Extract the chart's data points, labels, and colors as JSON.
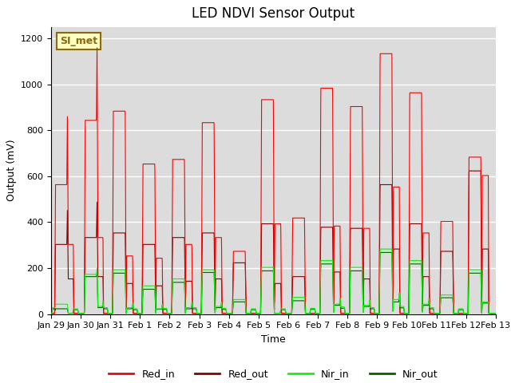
{
  "title": "LED NDVI Sensor Output",
  "xlabel": "Time",
  "ylabel": "Output (mV)",
  "xlim": [
    0,
    15
  ],
  "ylim": [
    0,
    1250
  ],
  "yticks": [
    0,
    200,
    400,
    600,
    800,
    1000,
    1200
  ],
  "xtick_labels": [
    "Jan 29",
    "Jan 30",
    "Jan 31",
    "Feb 1",
    "Feb 2",
    "Feb 3",
    "Feb 4",
    "Feb 5",
    "Feb 6",
    "Feb 7",
    "Feb 8",
    "Feb 9",
    "Feb 10",
    "Feb 11",
    "Feb 12",
    "Feb 13"
  ],
  "xtick_positions": [
    0,
    1,
    2,
    3,
    4,
    5,
    6,
    7,
    8,
    9,
    10,
    11,
    12,
    13,
    14,
    15
  ],
  "colors": {
    "Red_in": "#ff0000",
    "Red_out": "#8b0000",
    "Nir_in": "#00ff00",
    "Nir_out": "#006400"
  },
  "background_color": "#dcdcdc",
  "annotation_text": "SI_met",
  "annotation_color": "#8b6914",
  "annotation_bg": "#ffffc0",
  "title_fontsize": 12,
  "axis_fontsize": 9,
  "tick_fontsize": 8,
  "legend_fontsize": 9,
  "pulse_groups": [
    {
      "t_start": 0.15,
      "t_end": 0.55,
      "ri": 560,
      "ro": 300,
      "ni": 40,
      "no": 20
    },
    {
      "t_start": 1.15,
      "t_end": 1.55,
      "ri": 840,
      "ro": 330,
      "ni": 170,
      "no": 160
    },
    {
      "t_start": 2.1,
      "t_end": 2.5,
      "ri": 880,
      "ro": 350,
      "ni": 190,
      "no": 175
    },
    {
      "t_start": 3.1,
      "t_end": 3.5,
      "ri": 650,
      "ro": 300,
      "ni": 120,
      "no": 105
    },
    {
      "t_start": 4.1,
      "t_end": 4.5,
      "ri": 670,
      "ro": 330,
      "ni": 150,
      "no": 135
    },
    {
      "t_start": 5.1,
      "t_end": 5.5,
      "ri": 830,
      "ro": 350,
      "ni": 190,
      "no": 178
    },
    {
      "t_start": 6.15,
      "t_end": 6.55,
      "ri": 270,
      "ro": 220,
      "ni": 60,
      "no": 50
    },
    {
      "t_start": 7.1,
      "t_end": 7.5,
      "ri": 930,
      "ro": 390,
      "ni": 200,
      "no": 185
    },
    {
      "t_start": 8.15,
      "t_end": 8.55,
      "ri": 415,
      "ro": 160,
      "ni": 70,
      "no": 55
    },
    {
      "t_start": 9.1,
      "t_end": 9.5,
      "ri": 980,
      "ro": 375,
      "ni": 230,
      "no": 215
    },
    {
      "t_start": 10.1,
      "t_end": 10.5,
      "ri": 900,
      "ro": 370,
      "ni": 200,
      "no": 185
    },
    {
      "t_start": 11.1,
      "t_end": 11.5,
      "ri": 1130,
      "ro": 560,
      "ni": 280,
      "no": 265
    },
    {
      "t_start": 12.1,
      "t_end": 12.5,
      "ri": 960,
      "ro": 390,
      "ni": 230,
      "no": 215
    },
    {
      "t_start": 13.15,
      "t_end": 13.55,
      "ri": 400,
      "ro": 270,
      "ni": 80,
      "no": 68
    },
    {
      "t_start": 14.1,
      "t_end": 14.5,
      "ri": 680,
      "ro": 620,
      "ni": 190,
      "no": 175
    }
  ],
  "sub_peaks": [
    {
      "t_start": 0.55,
      "t_end": 0.75,
      "ri": 300,
      "ro": 150,
      "ni": 0,
      "no": 0
    },
    {
      "t_start": 1.55,
      "t_end": 1.75,
      "ri": 330,
      "ro": 160,
      "ni": 30,
      "no": 25
    },
    {
      "t_start": 2.55,
      "t_end": 2.75,
      "ri": 250,
      "ro": 130,
      "ni": 25,
      "no": 20
    },
    {
      "t_start": 3.55,
      "t_end": 3.75,
      "ri": 240,
      "ro": 120,
      "ni": 20,
      "no": 18
    },
    {
      "t_start": 4.55,
      "t_end": 4.75,
      "ri": 300,
      "ro": 140,
      "ni": 25,
      "no": 20
    },
    {
      "t_start": 5.55,
      "t_end": 5.75,
      "ri": 330,
      "ro": 150,
      "ni": 30,
      "no": 25
    },
    {
      "t_start": 7.55,
      "t_end": 7.75,
      "ri": 390,
      "ro": 130,
      "ni": 0,
      "no": 0
    },
    {
      "t_start": 9.55,
      "t_end": 9.75,
      "ri": 380,
      "ro": 180,
      "ni": 40,
      "no": 35
    },
    {
      "t_start": 10.55,
      "t_end": 10.75,
      "ri": 370,
      "ro": 150,
      "ni": 35,
      "no": 30
    },
    {
      "t_start": 11.55,
      "t_end": 11.75,
      "ri": 550,
      "ro": 280,
      "ni": 60,
      "no": 50
    },
    {
      "t_start": 12.55,
      "t_end": 12.75,
      "ri": 350,
      "ro": 160,
      "ni": 40,
      "no": 35
    },
    {
      "t_start": 14.55,
      "t_end": 14.75,
      "ri": 600,
      "ro": 280,
      "ni": 50,
      "no": 45
    }
  ]
}
